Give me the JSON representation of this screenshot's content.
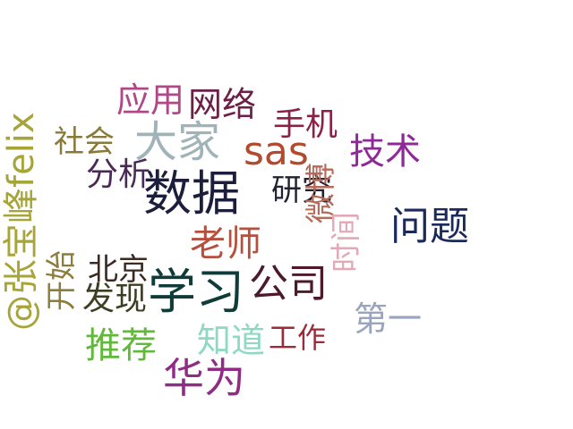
{
  "words": [
    {
      "id": "shuju",
      "text": "数据",
      "color": "#1c1f3b"
    },
    {
      "id": "xuexi",
      "text": "学习",
      "color": "#0f3b38"
    },
    {
      "id": "dajia",
      "text": "大家",
      "color": "#9fb3b8"
    },
    {
      "id": "sas",
      "text": "sas",
      "color": "#b24a2e"
    },
    {
      "id": "zhangbaofeng",
      "text": "@张宝峰felix",
      "color": "#a7a43a"
    },
    {
      "id": "gongsi",
      "text": "公司",
      "color": "#4c1a2a"
    },
    {
      "id": "huawei",
      "text": "华为",
      "color": "#8f2d86"
    },
    {
      "id": "laoshi",
      "text": "老师",
      "color": "#b6503e"
    },
    {
      "id": "jishu",
      "text": "技术",
      "color": "#8e2a97"
    },
    {
      "id": "yingyong",
      "text": "应用",
      "color": "#b04787"
    },
    {
      "id": "wangluo",
      "text": "网络",
      "color": "#6b2147"
    },
    {
      "id": "wenti",
      "text": "问题",
      "color": "#1b2a5a"
    },
    {
      "id": "yanjiu",
      "text": "研究",
      "color": "#1f2233"
    },
    {
      "id": "fenxi",
      "text": "分析",
      "color": "#4a2a55"
    },
    {
      "id": "shouji",
      "text": "手机",
      "color": "#8b2246"
    },
    {
      "id": "tuijian",
      "text": "推荐",
      "color": "#62b83a"
    },
    {
      "id": "zhidao",
      "text": "知道",
      "color": "#8fd8c4"
    },
    {
      "id": "gongzuo",
      "text": "工作",
      "color": "#9a2b3a"
    },
    {
      "id": "diyi",
      "text": "第一",
      "color": "#9aa4be"
    },
    {
      "id": "shehui",
      "text": "社会",
      "color": "#8a7a3a"
    },
    {
      "id": "beijing",
      "text": "北京",
      "color": "#3a2a22"
    },
    {
      "id": "faxian",
      "text": "发现",
      "color": "#3c3f22"
    },
    {
      "id": "kaishi",
      "text": "开始",
      "color": "#8d7d3d"
    },
    {
      "id": "weibo",
      "text": "微博",
      "color": "#b66a5a"
    },
    {
      "id": "shijian",
      "text": "时间",
      "color": "#e2aab8"
    }
  ]
}
